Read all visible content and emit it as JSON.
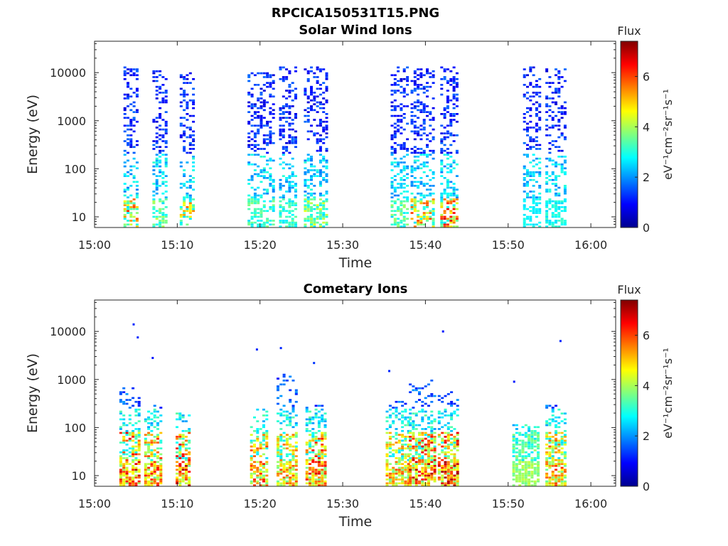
{
  "figure_title": "RPCICA150531T15.PNG",
  "chart_data": [
    {
      "type": "heatmap",
      "title": "Solar Wind Ions",
      "xlabel": "Time",
      "ylabel": "Energy (eV)",
      "xlim": [
        "15:00",
        "16:03"
      ],
      "ylim": [
        6,
        45000
      ],
      "yscale": "log",
      "xticks": [
        "15:00",
        "15:10",
        "15:20",
        "15:30",
        "15:40",
        "15:50",
        "16:00"
      ],
      "yticks": [
        "10",
        "100",
        "1000",
        "10000"
      ],
      "colorbar": {
        "title": "Flux",
        "label": "eV⁻¹cm⁻²sr⁻¹s⁻¹",
        "range": [
          0,
          7.4
        ],
        "ticks": [
          "0",
          "2",
          "4",
          "6"
        ],
        "colormap": "jet"
      },
      "bursts": [
        {
          "t0": 3.5,
          "t1": 5.3,
          "emax": 14000,
          "low_peak": 6.2,
          "seed": 11
        },
        {
          "t0": 7.0,
          "t1": 8.6,
          "emax": 12000,
          "low_peak": 4.5,
          "seed": 23
        },
        {
          "t0": 10.3,
          "t1": 11.8,
          "emax": 10000,
          "low_peak": 5.8,
          "seed": 37
        },
        {
          "t0": 18.5,
          "t1": 21.5,
          "emax": 11000,
          "low_peak": 3.8,
          "seed": 41
        },
        {
          "t0": 22.3,
          "t1": 24.5,
          "emax": 14000,
          "low_peak": 3.6,
          "seed": 53
        },
        {
          "t0": 25.3,
          "t1": 28.0,
          "emax": 14000,
          "low_peak": 4.5,
          "seed": 67
        },
        {
          "t0": 35.8,
          "t1": 38.0,
          "emax": 15000,
          "low_peak": 3.9,
          "seed": 71
        },
        {
          "t0": 38.2,
          "t1": 40.8,
          "emax": 12000,
          "low_peak": 6.2,
          "seed": 83
        },
        {
          "t0": 41.8,
          "t1": 43.8,
          "emax": 14000,
          "low_peak": 6.8,
          "seed": 97
        },
        {
          "t0": 51.8,
          "t1": 53.8,
          "emax": 14000,
          "low_peak": 3.0,
          "seed": 101
        },
        {
          "t0": 54.5,
          "t1": 56.8,
          "emax": 12000,
          "low_peak": 3.2,
          "seed": 113
        }
      ]
    },
    {
      "type": "heatmap",
      "title": "Cometary Ions",
      "xlabel": "Time",
      "ylabel": "Energy (eV)",
      "xlim": [
        "15:00",
        "16:03"
      ],
      "ylim": [
        6,
        45000
      ],
      "yscale": "log",
      "xticks": [
        "15:00",
        "15:10",
        "15:20",
        "15:30",
        "15:40",
        "15:50",
        "16:00"
      ],
      "yticks": [
        "10",
        "100",
        "1000",
        "10000"
      ],
      "colorbar": {
        "title": "Flux",
        "label": "eV⁻¹cm⁻²sr⁻¹s⁻¹",
        "range": [
          0,
          7.4
        ],
        "ticks": [
          "0",
          "2",
          "4",
          "6"
        ],
        "colormap": "jet"
      },
      "bursts": [
        {
          "t0": 3.0,
          "t1": 5.3,
          "emax": 700,
          "low_peak": 7.0,
          "seed": 131
        },
        {
          "t0": 6.0,
          "t1": 8.2,
          "emax": 300,
          "low_peak": 6.6,
          "seed": 137
        },
        {
          "t0": 9.8,
          "t1": 11.3,
          "emax": 200,
          "low_peak": 7.2,
          "seed": 149
        },
        {
          "t0": 18.8,
          "t1": 21.0,
          "emax": 300,
          "low_peak": 6.4,
          "seed": 151
        },
        {
          "t0": 22.0,
          "t1": 24.3,
          "emax": 1300,
          "low_peak": 6.0,
          "seed": 163
        },
        {
          "t0": 25.5,
          "t1": 27.8,
          "emax": 300,
          "low_peak": 6.8,
          "seed": 173
        },
        {
          "t0": 35.2,
          "t1": 37.8,
          "emax": 400,
          "low_peak": 6.0,
          "seed": 181
        },
        {
          "t0": 38.0,
          "t1": 41.0,
          "emax": 1000,
          "low_peak": 7.1,
          "seed": 191
        },
        {
          "t0": 41.5,
          "t1": 44.0,
          "emax": 600,
          "low_peak": 7.2,
          "seed": 193
        },
        {
          "t0": 50.5,
          "t1": 53.8,
          "emax": 120,
          "low_peak": 4.2,
          "seed": 197
        },
        {
          "t0": 54.5,
          "t1": 57.0,
          "emax": 300,
          "low_peak": 6.2,
          "seed": 211
        }
      ],
      "sparse_points": [
        {
          "t": 4.6,
          "e": 14000,
          "v": 1.2
        },
        {
          "t": 5.1,
          "e": 7500,
          "v": 1.2
        },
        {
          "t": 6.9,
          "e": 2800,
          "v": 1.1
        },
        {
          "t": 19.5,
          "e": 4200,
          "v": 1.2
        },
        {
          "t": 22.4,
          "e": 4500,
          "v": 1.2
        },
        {
          "t": 26.4,
          "e": 2200,
          "v": 1.3
        },
        {
          "t": 35.5,
          "e": 1500,
          "v": 1.2
        },
        {
          "t": 42.0,
          "e": 10000,
          "v": 1.1
        },
        {
          "t": 50.6,
          "e": 900,
          "v": 1.1
        },
        {
          "t": 56.2,
          "e": 6300,
          "v": 1.2
        }
      ]
    }
  ]
}
